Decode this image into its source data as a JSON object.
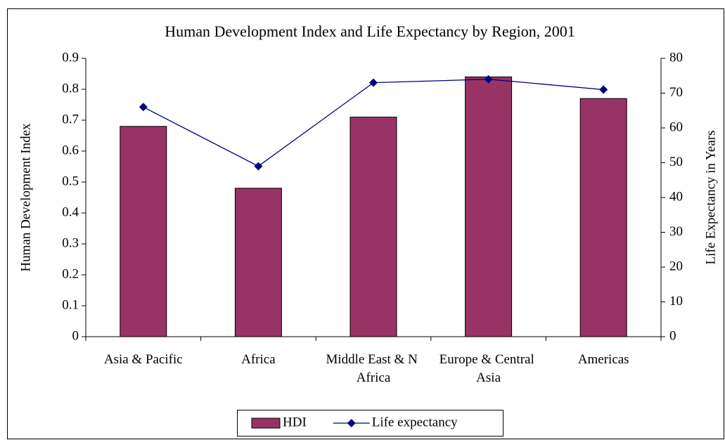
{
  "chart_data": {
    "type": "bar_line",
    "title": "Human Development Index and Life Expectancy by Region, 2001",
    "categories": [
      "Asia & Pacific",
      "Africa",
      "Middle East & N Africa",
      "Europe & Central Asia",
      "Americas"
    ],
    "ylabel": "Human Development Index",
    "y2label": "Life Expectancy in Years",
    "ylim": [
      0,
      0.9
    ],
    "yticks": [
      0,
      0.1,
      0.2,
      0.3,
      0.4,
      0.5,
      0.6,
      0.7,
      0.8,
      0.9
    ],
    "y2lim": [
      0,
      80
    ],
    "y2ticks": [
      0,
      10,
      20,
      30,
      40,
      50,
      60,
      70,
      80
    ],
    "series": [
      {
        "name": "HDI",
        "type": "bar",
        "color": "#993366",
        "values": [
          0.68,
          0.48,
          0.71,
          0.84,
          0.77
        ]
      },
      {
        "name": "Life expectancy",
        "type": "line",
        "axis": "y2",
        "color": "#000080",
        "values": [
          66,
          49,
          73,
          74,
          71
        ]
      }
    ],
    "legend": "bottom",
    "grid": false
  }
}
